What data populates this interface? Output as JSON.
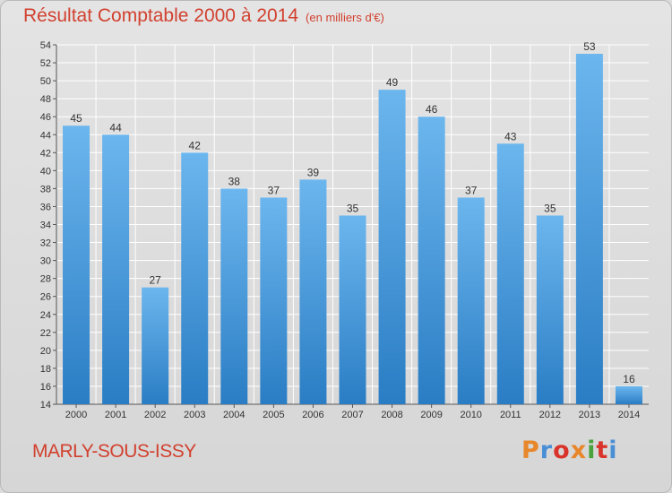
{
  "header": {
    "title": "Résultat Comptable 2000 à 2014",
    "unit": "(en milliers d'€)"
  },
  "footer": {
    "location": "MARLY-SOUS-ISSY",
    "logo_letters": [
      "P",
      "r",
      "o",
      "x",
      "i",
      "t",
      "i"
    ],
    "logo_colors": [
      "#e8862a",
      "#4a8fd6",
      "#d9342b",
      "#e8862a",
      "#4aa23c",
      "#d9342b",
      "#4a8fd6"
    ]
  },
  "chart_data": {
    "type": "bar",
    "title": "Résultat Comptable 2000 à 2014",
    "subtitle": "(en milliers d'€)",
    "categories": [
      "2000",
      "2001",
      "2002",
      "2003",
      "2004",
      "2005",
      "2006",
      "2007",
      "2008",
      "2009",
      "2010",
      "2011",
      "2012",
      "2013",
      "2014"
    ],
    "values": [
      45,
      44,
      27,
      42,
      38,
      37,
      39,
      35,
      49,
      46,
      37,
      43,
      35,
      53,
      16
    ],
    "xlabel": "",
    "ylabel": "",
    "ylim": [
      14,
      54
    ],
    "yticks": [
      14,
      16,
      18,
      20,
      22,
      24,
      26,
      28,
      30,
      32,
      34,
      36,
      38,
      40,
      42,
      44,
      46,
      48,
      50,
      52,
      54
    ],
    "grid": true,
    "bar_color_top": "#6cb6ee",
    "bar_color_bottom": "#2a7dc4"
  }
}
